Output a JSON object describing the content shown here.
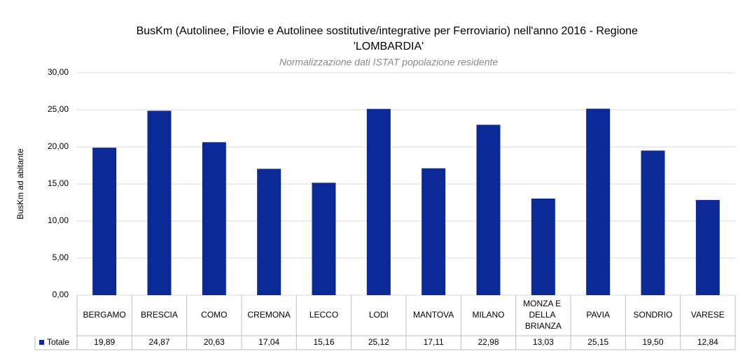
{
  "chart_data": {
    "type": "bar",
    "title": "BusKm (Autolinee, Filovie e Autolinee sostitutive/integrative per Ferroviario) nell'anno 2016 - Regione 'LOMBARDIA'",
    "subtitle": "Normalizzazione dati ISTAT popolazione residente",
    "y_label": "BusKm ad abitante",
    "categories": [
      "BERGAMO",
      "BRESCIA",
      "COMO",
      "CREMONA",
      "LECCO",
      "LODI",
      "MANTOVA",
      "MILANO",
      "MONZA E DELLA BRIANZA",
      "PAVIA",
      "SONDRIO",
      "VARESE"
    ],
    "series": [
      {
        "name": "Totale",
        "color": "#0b2a97",
        "values": [
          19.89,
          24.87,
          20.63,
          17.04,
          15.16,
          25.12,
          17.11,
          22.98,
          13.03,
          25.15,
          19.5,
          12.84
        ],
        "value_labels": [
          "19,89",
          "24,87",
          "20,63",
          "17,04",
          "15,16",
          "25,12",
          "17,11",
          "22,98",
          "13,03",
          "25,15",
          "19,50",
          "12,84"
        ]
      }
    ],
    "ylim": [
      0,
      30
    ],
    "yticks": [
      {
        "value": 0,
        "label": "0,00"
      },
      {
        "value": 5,
        "label": "5,00"
      },
      {
        "value": 10,
        "label": "10,00"
      },
      {
        "value": 15,
        "label": "15,00"
      },
      {
        "value": 20,
        "label": "20,00"
      },
      {
        "value": 25,
        "label": "25,00"
      },
      {
        "value": 30,
        "label": "30,00"
      }
    ],
    "grid": true
  }
}
